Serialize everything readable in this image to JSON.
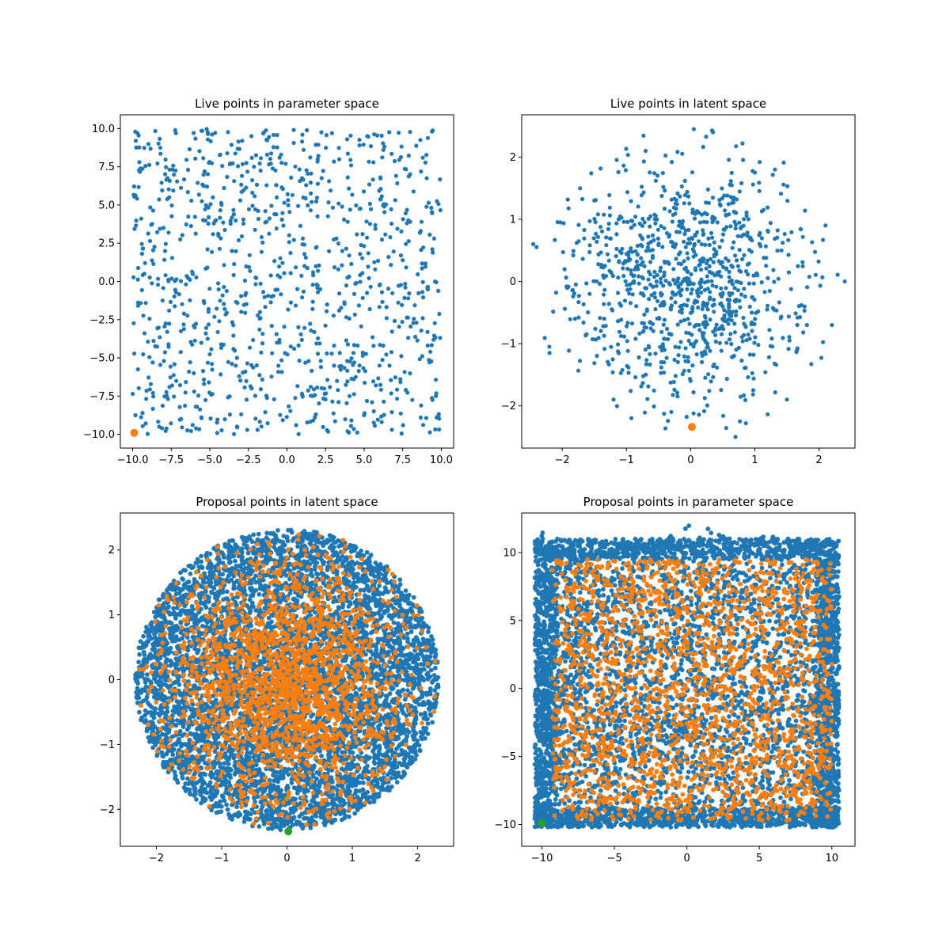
{
  "colors": {
    "series_blue": "#1f77b4",
    "series_orange": "#ff7f0e",
    "series_green": "#2ca02c",
    "axes": "#000000",
    "background": "#ffffff"
  },
  "chart_data": [
    {
      "id": "live-param",
      "type": "scatter",
      "title": "Live points in parameter space",
      "xlabel": "",
      "ylabel": "",
      "xlim": [
        -10.8,
        10.8
      ],
      "ylim": [
        -10.9,
        10.9
      ],
      "xticks": [
        -10.0,
        -7.5,
        -5.0,
        -2.5,
        0.0,
        2.5,
        5.0,
        7.5,
        10.0
      ],
      "xtick_labels": [
        "−10.0",
        "−7.5",
        "−5.0",
        "−2.5",
        "0.0",
        "2.5",
        "5.0",
        "7.5",
        "10.0"
      ],
      "yticks": [
        -10.0,
        -7.5,
        -5.0,
        -2.5,
        0.0,
        2.5,
        5.0,
        7.5,
        10.0
      ],
      "ytick_labels": [
        "−10.0",
        "−7.5",
        "−5.0",
        "−2.5",
        "0.0",
        "2.5",
        "5.0",
        "7.5",
        "10.0"
      ],
      "grid": false,
      "series": [
        {
          "color": "#1f77b4",
          "distribution": "uniform-square",
          "count": 1000,
          "center": [
            0,
            0
          ],
          "x_range": [
            -10.0,
            10.0
          ],
          "y_range": [
            -10.0,
            10.0
          ],
          "sample": [
            [
              -9.8,
              9.2
            ],
            [
              -7.2,
              9.7
            ],
            [
              -2.3,
              9.5
            ],
            [
              1.0,
              9.6
            ],
            [
              5.2,
              9.5
            ],
            [
              9.4,
              9.8
            ],
            [
              -4.8,
              5.5
            ],
            [
              1.6,
              5.2
            ],
            [
              6.3,
              4.9
            ],
            [
              -9.2,
              1.2
            ],
            [
              -0.6,
              0.4
            ],
            [
              4.5,
              -0.1
            ],
            [
              -8.7,
              -5.3
            ],
            [
              -3.1,
              -6.2
            ],
            [
              2.2,
              -5.6
            ],
            [
              7.7,
              -7.1
            ],
            [
              -8.1,
              -9.6
            ],
            [
              1.7,
              -9.1
            ],
            [
              6.8,
              -9.7
            ],
            [
              9.7,
              -8.9
            ]
          ]
        },
        {
          "color": "#ff7f0e",
          "distribution": "single",
          "points": [
            [
              -9.9,
              -9.9
            ]
          ]
        }
      ]
    },
    {
      "id": "live-latent",
      "type": "scatter",
      "title": "Live points in latent space",
      "xlabel": "",
      "ylabel": "",
      "xlim": [
        -2.63,
        2.56
      ],
      "ylim": [
        -2.68,
        2.68
      ],
      "xticks": [
        -2,
        -1,
        0,
        1,
        2
      ],
      "xtick_labels": [
        "−2",
        "−1",
        "0",
        "1",
        "2"
      ],
      "yticks": [
        -2,
        -1,
        0,
        1,
        2
      ],
      "ytick_labels": [
        "−2",
        "−1",
        "0",
        "1",
        "2"
      ],
      "grid": false,
      "series": [
        {
          "color": "#1f77b4",
          "distribution": "gaussian-blob",
          "count": 1000,
          "center": [
            0,
            0
          ],
          "radius_max": 2.5,
          "sample": [
            [
              -2.45,
              0.6
            ],
            [
              -2.2,
              -1.05
            ],
            [
              -1.5,
              1.3
            ],
            [
              -0.7,
              2.1
            ],
            [
              0.05,
              2.45
            ],
            [
              0.35,
              2.4
            ],
            [
              1.0,
              1.75
            ],
            [
              2.1,
              0.9
            ],
            [
              2.4,
              0.0
            ],
            [
              2.2,
              -0.7
            ],
            [
              1.5,
              -1.9
            ],
            [
              0.7,
              -2.5
            ],
            [
              0.0,
              -1.6
            ],
            [
              -0.3,
              -2.1
            ],
            [
              -1.2,
              -1.9
            ],
            [
              -1.8,
              -0.6
            ],
            [
              -0.4,
              0.3
            ],
            [
              0.5,
              -0.4
            ]
          ]
        },
        {
          "color": "#ff7f0e",
          "distribution": "single",
          "points": [
            [
              0.02,
              -2.34
            ]
          ]
        }
      ]
    },
    {
      "id": "proposal-latent",
      "type": "scatter",
      "title": "Proposal points in latent space",
      "xlabel": "",
      "ylabel": "",
      "xlim": [
        -2.55,
        2.55
      ],
      "ylim": [
        -2.57,
        2.57
      ],
      "xticks": [
        -2,
        -1,
        0,
        1,
        2
      ],
      "xtick_labels": [
        "−2",
        "−1",
        "0",
        "1",
        "2"
      ],
      "yticks": [
        -2,
        -1,
        0,
        1,
        2
      ],
      "ytick_labels": [
        "−2",
        "−1",
        "0",
        "1",
        "2"
      ],
      "grid": false,
      "series": [
        {
          "color": "#1f77b4",
          "distribution": "uniform-disc",
          "count": 6000,
          "center": [
            0,
            0
          ],
          "radius": 2.32
        },
        {
          "color": "#ff7f0e",
          "distribution": "gaussian-in-disc",
          "count": 2000,
          "center": [
            0,
            0
          ],
          "radius": 2.32
        },
        {
          "color": "#2ca02c",
          "distribution": "single",
          "points": [
            [
              0.02,
              -2.34
            ]
          ]
        }
      ]
    },
    {
      "id": "proposal-param",
      "type": "scatter",
      "title": "Proposal points in parameter space",
      "xlabel": "",
      "ylabel": "",
      "xlim": [
        -11.4,
        11.6
      ],
      "ylim": [
        -11.6,
        12.9
      ],
      "xticks": [
        -10,
        -5,
        0,
        5,
        10
      ],
      "xtick_labels": [
        "−10",
        "−5",
        "0",
        "5",
        "10"
      ],
      "yticks": [
        -10,
        -5,
        0,
        5,
        10
      ],
      "ytick_labels": [
        "−10",
        "−5",
        "0",
        "5",
        "10"
      ],
      "grid": false,
      "series": [
        {
          "color": "#1f77b4",
          "distribution": "warped-square",
          "count": 6000,
          "center": [
            0,
            0
          ],
          "x_range": [
            -10.5,
            10.5
          ],
          "y_range": [
            -10.2,
            11.8
          ]
        },
        {
          "color": "#ff7f0e",
          "distribution": "uniform-square-sparse",
          "count": 2000,
          "center": [
            0,
            0
          ],
          "x_range": [
            -9.3,
            10.0
          ],
          "y_range": [
            -9.7,
            9.5
          ]
        },
        {
          "color": "#2ca02c",
          "distribution": "single",
          "points": [
            [
              -10.0,
              -9.9
            ]
          ]
        }
      ]
    }
  ]
}
